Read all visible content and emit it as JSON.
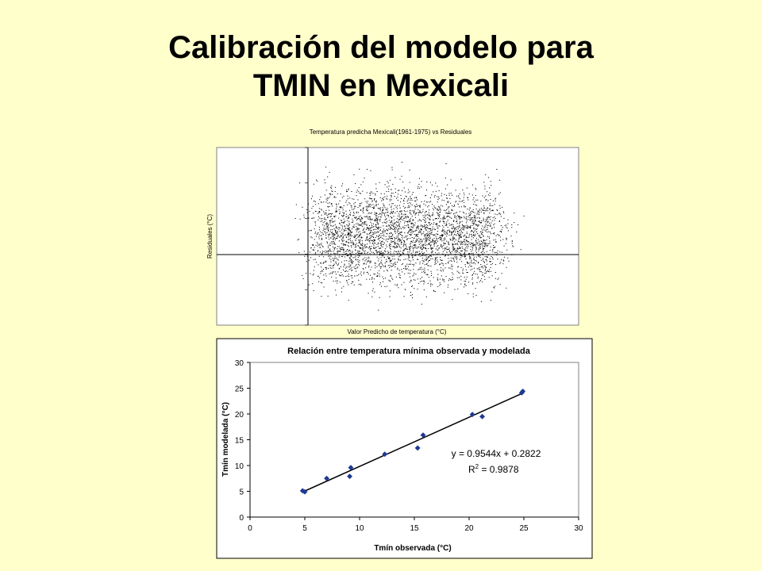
{
  "slide": {
    "title_line1": "Calibración del modelo para",
    "title_line2": "TMIN en Mexicali"
  },
  "colors": {
    "background": "#ffffcc",
    "plot_area": "#ffffff",
    "points": "#1f3a93",
    "residual_points": "#000000"
  },
  "chart_data": [
    {
      "type": "scatter",
      "title": "Temperatura predicha Mexicali(1961-1975) vs Residuales",
      "xlabel": "Valor Predicho de temperatura (°C)",
      "ylabel": "Residuales (°C)",
      "grid": false,
      "legend": "none",
      "note": "dense residual cloud of daily values; tick labels too small to read",
      "x_range_approx": [
        -5,
        35
      ],
      "y_range_approx": [
        -10,
        10
      ],
      "point_density": {
        "x_center_approx": 16,
        "x_spread_approx": 18,
        "y_spread_approx": 6
      }
    },
    {
      "type": "scatter",
      "title": "Relación entre temperatura mínima observada y modelada",
      "xlabel": "Tmín observada (°C)",
      "ylabel": "Tmín modelada (°C)",
      "xlim": [
        0,
        30
      ],
      "ylim": [
        0,
        30
      ],
      "xticks": [
        0,
        5,
        10,
        15,
        20,
        25,
        30
      ],
      "yticks": [
        0,
        5,
        10,
        15,
        20,
        25,
        30
      ],
      "grid": false,
      "legend": "none",
      "trendline": {
        "slope": 0.9544,
        "intercept": 0.2822,
        "x_range": [
          4.8,
          25
        ]
      },
      "equation_label": "y = 0.9544x + 0.2822",
      "r2_label": "R",
      "r2_value": " = 0.9878",
      "points": [
        {
          "x": 4.8,
          "y": 5.1
        },
        {
          "x": 5.0,
          "y": 4.9
        },
        {
          "x": 7.0,
          "y": 7.5
        },
        {
          "x": 9.1,
          "y": 7.9
        },
        {
          "x": 9.2,
          "y": 9.6
        },
        {
          "x": 12.3,
          "y": 12.2
        },
        {
          "x": 15.3,
          "y": 13.4
        },
        {
          "x": 15.8,
          "y": 15.9
        },
        {
          "x": 20.3,
          "y": 19.9
        },
        {
          "x": 21.2,
          "y": 19.5
        },
        {
          "x": 24.8,
          "y": 24.1
        },
        {
          "x": 24.9,
          "y": 24.4
        }
      ]
    }
  ]
}
